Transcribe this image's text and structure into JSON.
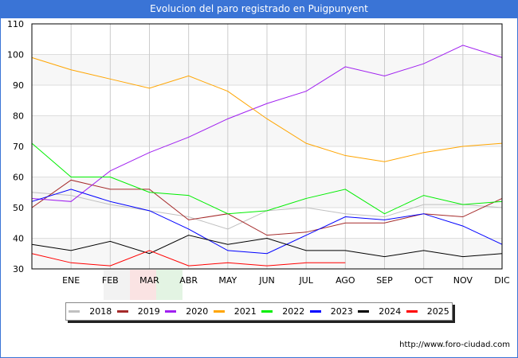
{
  "header": {
    "title": "Evolucion del paro registrado en Puigpunyent"
  },
  "footer": {
    "url": "http://www.foro-ciudad.com"
  },
  "chart_data": {
    "type": "line",
    "title": "Evolucion del paro registrado en Puigpunyent",
    "xlabel": "",
    "ylabel": "",
    "x": [
      "",
      "ENE",
      "FEB",
      "MAR",
      "ABR",
      "MAY",
      "JUN",
      "JUL",
      "AGO",
      "SEP",
      "OCT",
      "NOV",
      "DIC"
    ],
    "ylim": [
      30,
      110
    ],
    "yticks": [
      30,
      40,
      50,
      60,
      70,
      80,
      90,
      100,
      110
    ],
    "grid": true,
    "legend_position": "bottom",
    "series": [
      {
        "name": "2018",
        "color": "#c0c0c0",
        "values": [
          55,
          54,
          51,
          49,
          47,
          43,
          49,
          50,
          48,
          47,
          51,
          51,
          50
        ]
      },
      {
        "name": "2019",
        "color": "#a52a2a",
        "values": [
          50,
          59,
          56,
          56,
          46,
          48,
          41,
          42,
          45,
          45,
          48,
          47,
          53
        ]
      },
      {
        "name": "2020",
        "color": "#a020f0",
        "values": [
          53,
          52,
          62,
          68,
          73,
          79,
          84,
          88,
          96,
          93,
          97,
          103,
          99
        ]
      },
      {
        "name": "2021",
        "color": "#ffa500",
        "values": [
          99,
          95,
          92,
          89,
          93,
          88,
          79,
          71,
          67,
          65,
          68,
          70,
          71
        ]
      },
      {
        "name": "2022",
        "color": "#00ee00",
        "values": [
          71,
          60,
          60,
          55,
          54,
          48,
          49,
          53,
          56,
          48,
          54,
          51,
          52
        ]
      },
      {
        "name": "2023",
        "color": "#0000ff",
        "values": [
          52,
          56,
          52,
          49,
          43,
          36,
          35,
          41,
          47,
          46,
          48,
          44,
          38
        ]
      },
      {
        "name": "2024",
        "color": "#000000",
        "values": [
          38,
          36,
          39,
          35,
          41,
          38,
          40,
          36,
          36,
          34,
          36,
          34,
          35
        ]
      },
      {
        "name": "2025",
        "color": "#ff0000",
        "values": [
          35,
          32,
          31,
          36,
          31,
          32,
          31,
          32,
          32
        ]
      }
    ]
  }
}
